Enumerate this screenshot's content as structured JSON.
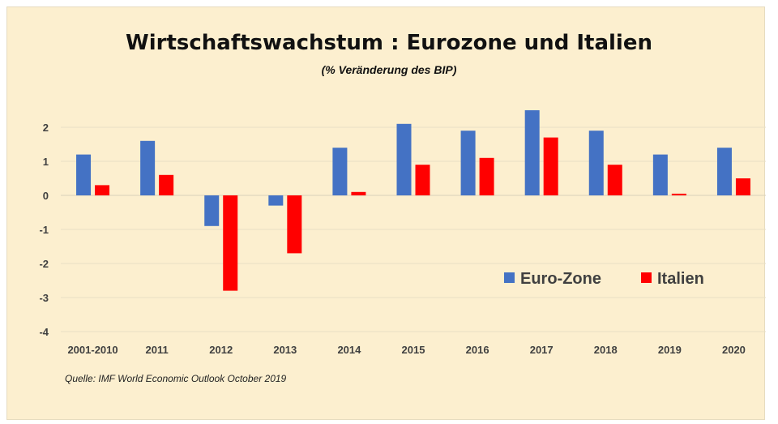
{
  "chart_data": {
    "type": "bar",
    "title": "Wirtschaftswachstum : Eurozone und Italien",
    "subtitle": "(% Veränderung des BIP)",
    "xlabel": "",
    "ylabel": "",
    "ylim": [
      -4,
      2.5
    ],
    "yticks": [
      2,
      1,
      0,
      -1,
      -2,
      -3,
      -4
    ],
    "grid": true,
    "legend_position": "right",
    "categories": [
      "2001-2010",
      "2011",
      "2012",
      "2013",
      "2014",
      "2015",
      "2016",
      "2017",
      "2018",
      "2019",
      "2020"
    ],
    "series": [
      {
        "name": "Euro-Zone",
        "color": "#4472c4",
        "values": [
          1.2,
          1.6,
          -0.9,
          -0.3,
          1.4,
          2.1,
          1.9,
          2.5,
          1.9,
          1.2,
          1.4
        ]
      },
      {
        "name": "Italien",
        "color": "#ff0000",
        "values": [
          0.3,
          0.6,
          -2.8,
          -1.7,
          0.1,
          0.9,
          1.1,
          1.7,
          0.9,
          0.05,
          0.5
        ]
      }
    ],
    "source": "Quelle: IMF World Economic Outlook October 2019"
  }
}
